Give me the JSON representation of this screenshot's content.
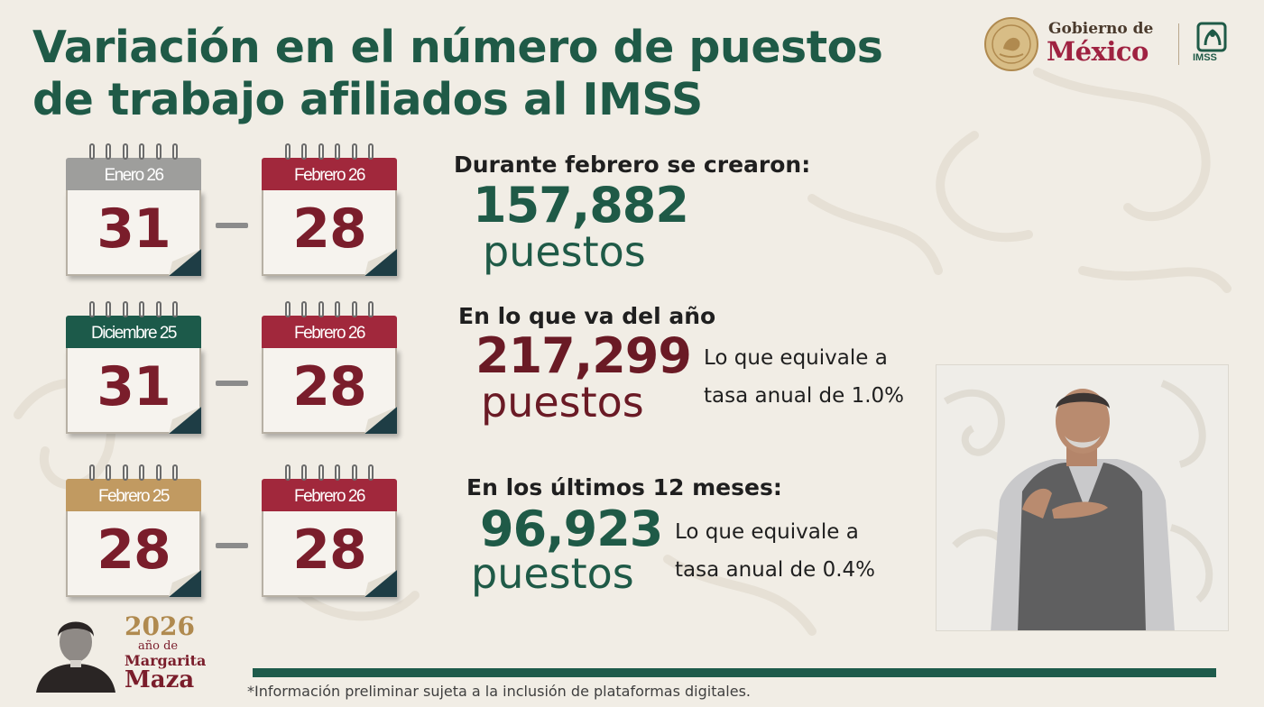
{
  "title": "Variación en el número de puestos de trabajo afiliados al IMSS",
  "logos": {
    "gobierno_small": "Gobierno de",
    "gobierno_big": "México",
    "imss": "IMSS"
  },
  "rows": [
    {
      "from": {
        "month": "Enero 26",
        "day": "31",
        "color": "gray"
      },
      "to": {
        "month": "Febrero 26",
        "day": "28",
        "color": "wine"
      },
      "label": "Durante febrero se crearon:",
      "value": "157,882",
      "unit": "puestos",
      "equivalence": null
    },
    {
      "from": {
        "month": "Diciembre 25",
        "day": "31",
        "color": "green"
      },
      "to": {
        "month": "Febrero 26",
        "day": "28",
        "color": "wine"
      },
      "label": "En lo que va del año",
      "value": "217,299",
      "unit": "puestos",
      "equivalence": {
        "line1": "Lo que equivale a",
        "line2": "tasa anual de 1.0%"
      }
    },
    {
      "from": {
        "month": "Febrero 25",
        "day": "28",
        "color": "gold"
      },
      "to": {
        "month": "Febrero 26",
        "day": "28",
        "color": "wine"
      },
      "label": "En los últimos 12 meses:",
      "value": "96,923",
      "unit": "puestos",
      "equivalence": {
        "line1": "Lo que equivale a",
        "line2": "tasa anual de 0.4%"
      }
    }
  ],
  "year_badge": {
    "year": "2026",
    "subtitle": "año de",
    "name1": "Margarita",
    "name2": "Maza"
  },
  "footnote": "*Información preliminar sujeta a la inclusión de plataformas digitales."
}
